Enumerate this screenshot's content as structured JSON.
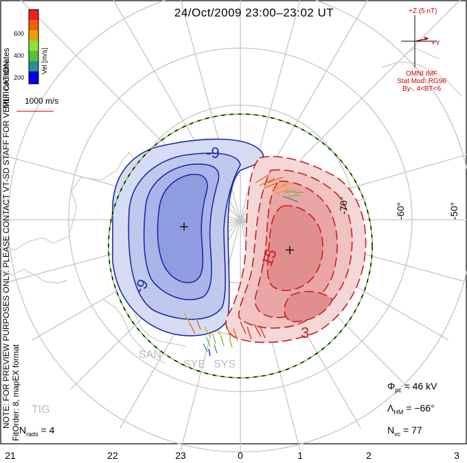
{
  "title": "24/Oct/2009 23:00–23:02 UT",
  "imf": {
    "z_label": "+Z (5 nT)",
    "y_label": "+Y",
    "source": "OMNI IMF",
    "stat_model": "Stat Mod: RG96",
    "bin": "By-, 4<BT<6",
    "color": "#cc0000"
  },
  "colorbar": {
    "title": "Vel [m/s]",
    "ticks": [
      "200",
      "400",
      "600"
    ],
    "colors": [
      "#0000e6",
      "#2a8f8f",
      "#56c23b",
      "#8ee23b",
      "#f0a000",
      "#f06000",
      "#ee2020"
    ]
  },
  "vector_scale": {
    "label": "1000 m/s"
  },
  "side_text": {
    "coords": "MLT coordinates",
    "preview": "NOTE: FOR PREVIEW PURPOSES ONLY. PLEASE CONTACT VT-SD STAFF FOR VERIFICATION.",
    "fit": "FitOrder: 8, mapEX format"
  },
  "mlt_labels": [
    "21",
    "22",
    "23",
    "0",
    "1",
    "2",
    "3"
  ],
  "lat_labels": [
    "-70°",
    "-60°",
    "-50°"
  ],
  "contours": {
    "neg_label": "-9",
    "neg_label2": "-9",
    "pos_label": "15",
    "pos_label2": "3"
  },
  "radars": [
    "SAN",
    "SYE",
    "SYS",
    "TIG"
  ],
  "stats": {
    "phi_pc_symbol": "Φ",
    "phi_pc_sub": "pc",
    "phi_pc_value": "= 46 kV",
    "lambda_symbol": "Λ",
    "lambda_sub": "HM",
    "lambda_value": "= −66°",
    "nvc_symbol": "N",
    "nvc_sub": "vc",
    "nvc_value": "= 77",
    "nrads_symbol": "N",
    "nrads_sub": "rads",
    "nrads_value": "= 4"
  },
  "colors": {
    "negative_cell": "#1a2aa8",
    "positive_cell": "#cc1a1a",
    "hmb": "#7ccf3a"
  }
}
